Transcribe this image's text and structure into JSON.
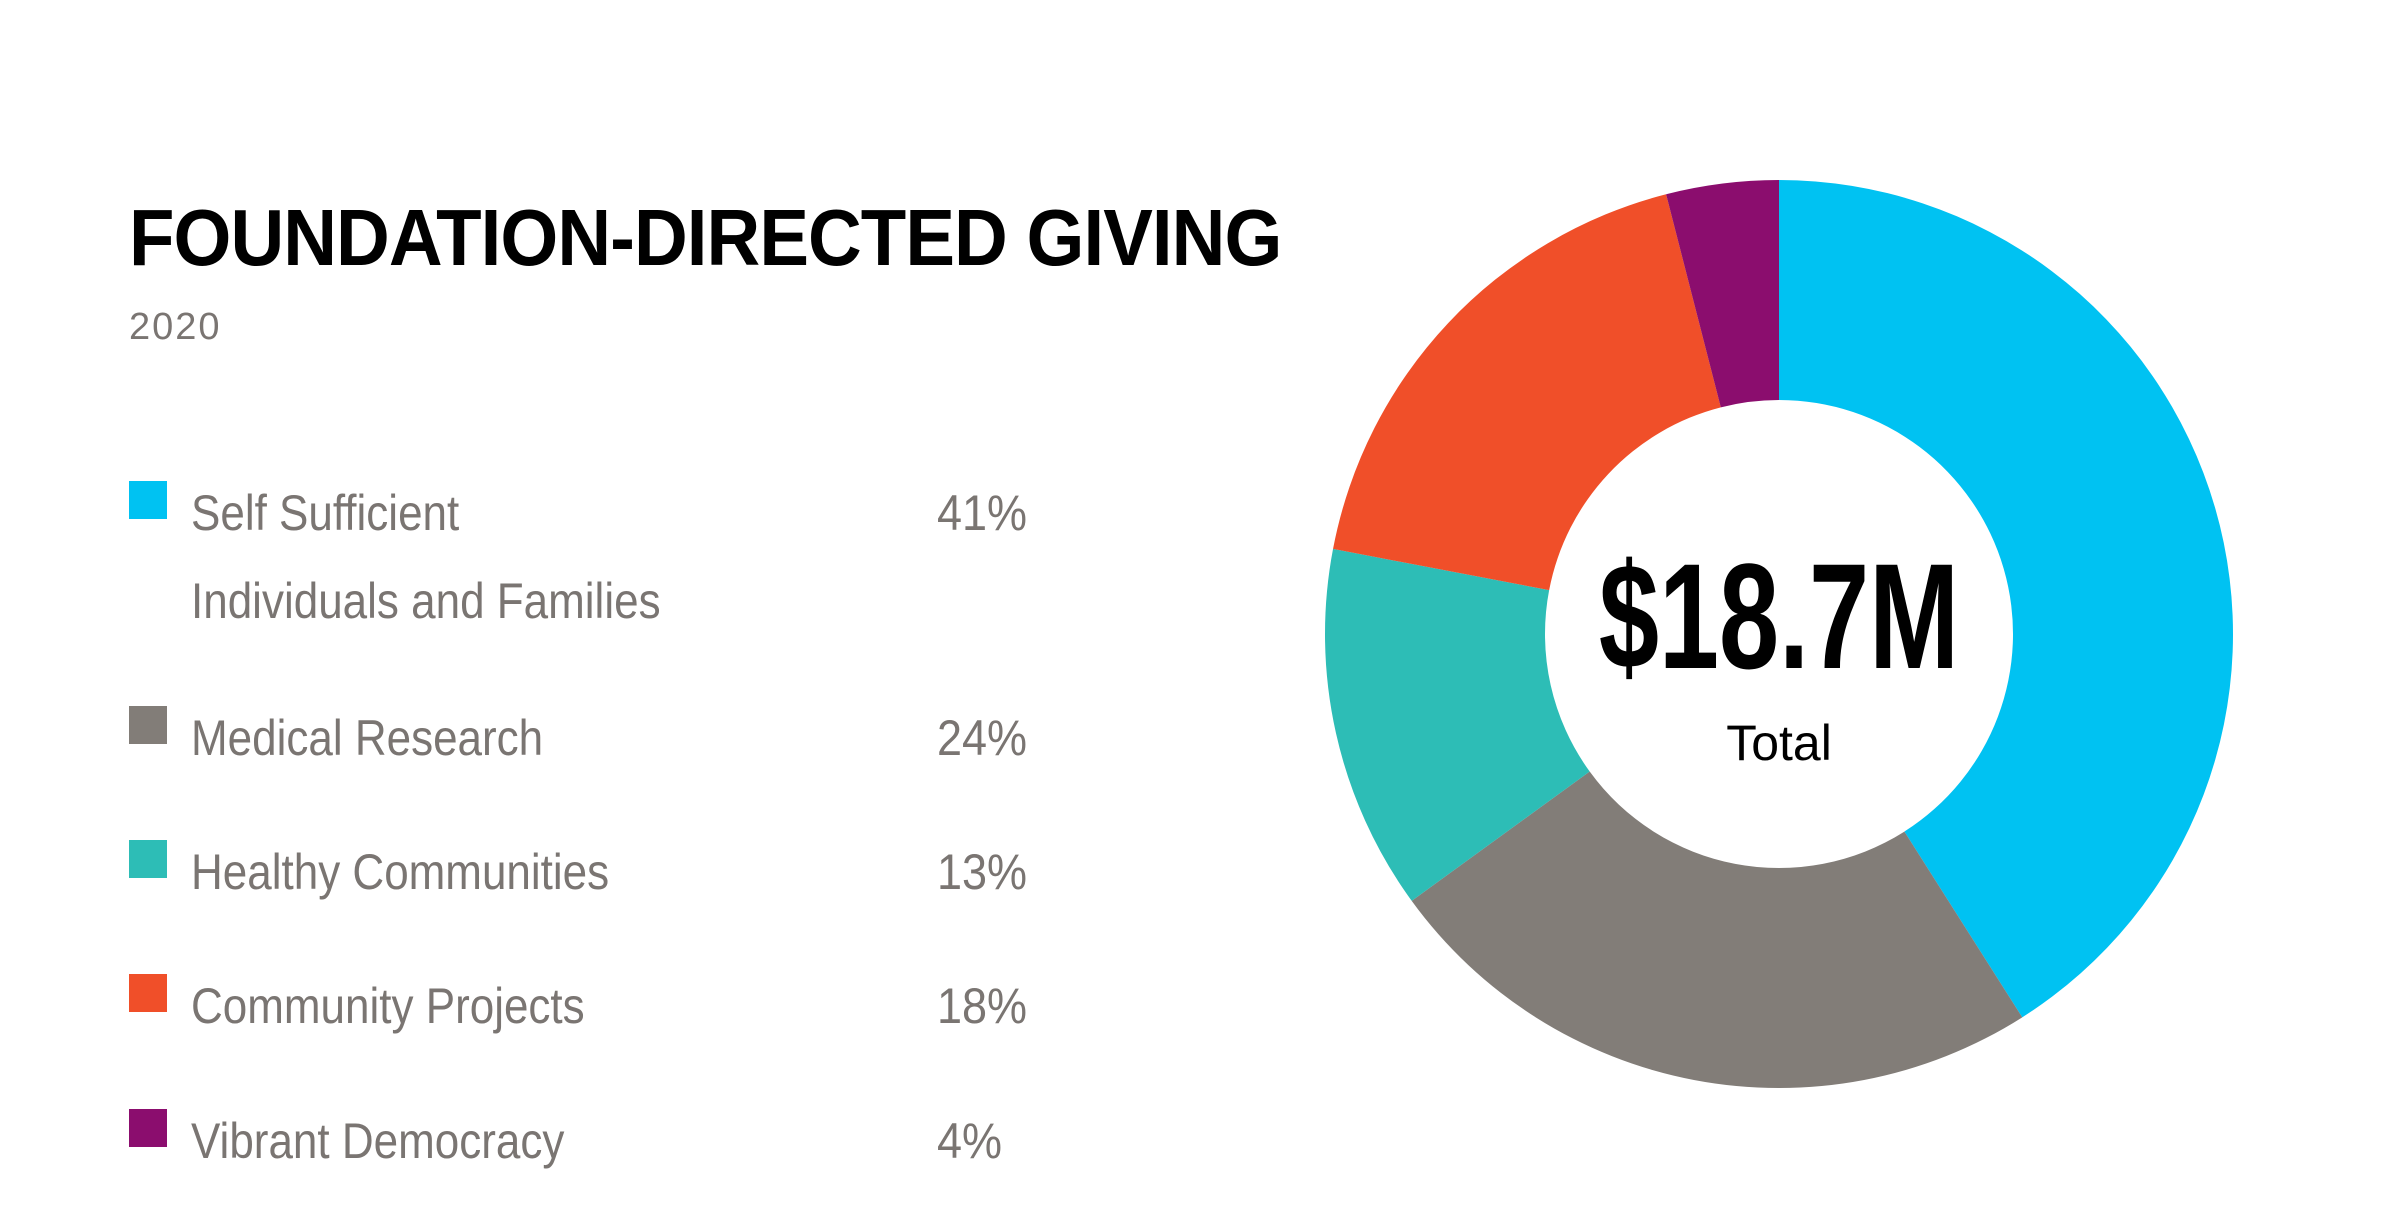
{
  "chart_data": {
    "type": "pie",
    "title": "FOUNDATION-DIRECTED GIVING",
    "subtitle": "2020",
    "center_value": "$18.7M",
    "center_label": "Total",
    "legend_placement": "left",
    "categories": [
      "Self Sufficient Individuals and Families",
      "Medical Research",
      "Healthy Communities",
      "Community Projects",
      "Vibrant Democracy"
    ],
    "label_lines": [
      [
        "Self Sufficient",
        "Individuals and Families"
      ],
      [
        "Medical Research"
      ],
      [
        "Healthy Communities"
      ],
      [
        "Community Projects"
      ],
      [
        "Vibrant Democracy"
      ]
    ],
    "values": [
      41,
      24,
      13,
      18,
      4
    ],
    "value_labels": [
      "41%",
      "24%",
      "13%",
      "18%",
      "4%"
    ],
    "colors": [
      "#00c2f2",
      "#827d78",
      "#2dbdb6",
      "#f04f29",
      "#8b0d6e"
    ]
  }
}
